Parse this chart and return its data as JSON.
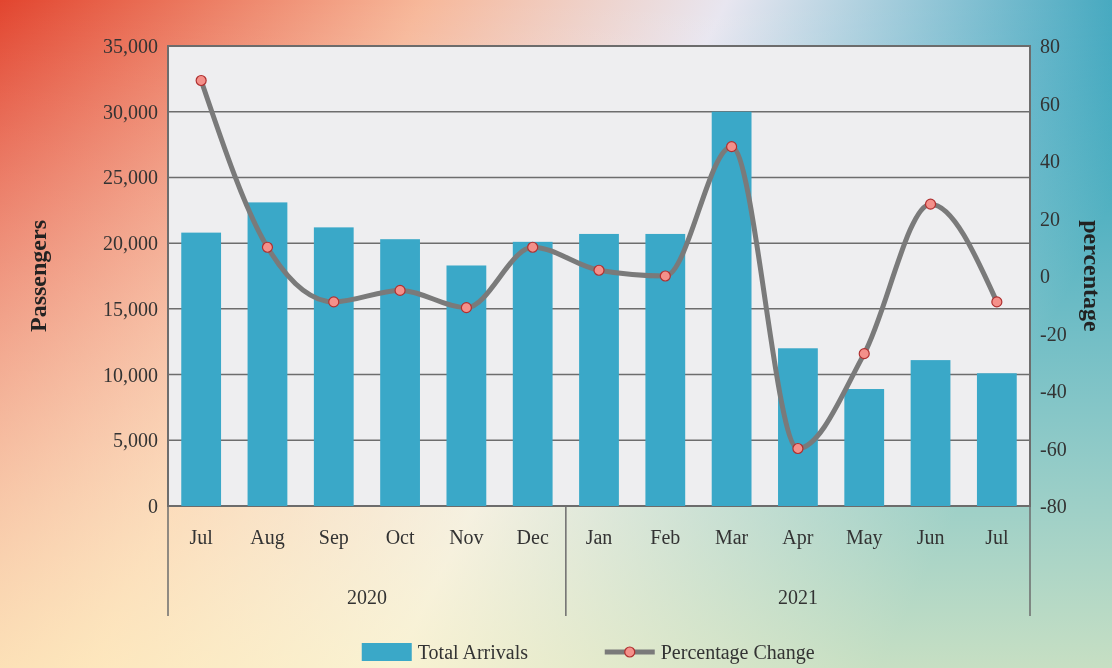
{
  "chart_data": {
    "type": "bar",
    "categories": [
      "Jul",
      "Aug",
      "Sep",
      "Oct",
      "Nov",
      "Dec",
      "Jan",
      "Feb",
      "Mar",
      "Apr",
      "May",
      "Jun",
      "Jul"
    ],
    "series": [
      {
        "name": "Total Arrivals",
        "color": "#3aa8c8",
        "values": [
          20800,
          23100,
          21200,
          20300,
          18300,
          20100,
          20700,
          20700,
          30000,
          12000,
          8900,
          11100,
          10100
        ]
      },
      {
        "name": "Percentage Change",
        "type": "line",
        "axis": "y2",
        "color": "#7a7a7a",
        "values": [
          68,
          10,
          -9,
          -5,
          -11,
          10,
          2,
          0,
          45,
          -60,
          -27,
          25,
          -9
        ]
      }
    ],
    "ylabel": "Passengers",
    "y2label": "percentage",
    "ylim": [
      0,
      35000
    ],
    "yticks": [
      {
        "value": 0,
        "label": "0"
      },
      {
        "value": 5000,
        "label": "5,000"
      },
      {
        "value": 10000,
        "label": "10,000"
      },
      {
        "value": 15000,
        "label": "15,000"
      },
      {
        "value": 20000,
        "label": "20,000"
      },
      {
        "value": 25000,
        "label": "25,000"
      },
      {
        "value": 30000,
        "label": "30,000"
      },
      {
        "value": 35000,
        "label": "35,000"
      }
    ],
    "y2lim": [
      -80,
      80
    ],
    "y2ticks": [
      -80,
      -60,
      -40,
      -20,
      0,
      20,
      40,
      60,
      80
    ],
    "annotations": [
      "2020",
      "2021"
    ],
    "grid": "y",
    "legend": "bottom",
    "marker": "circle"
  }
}
